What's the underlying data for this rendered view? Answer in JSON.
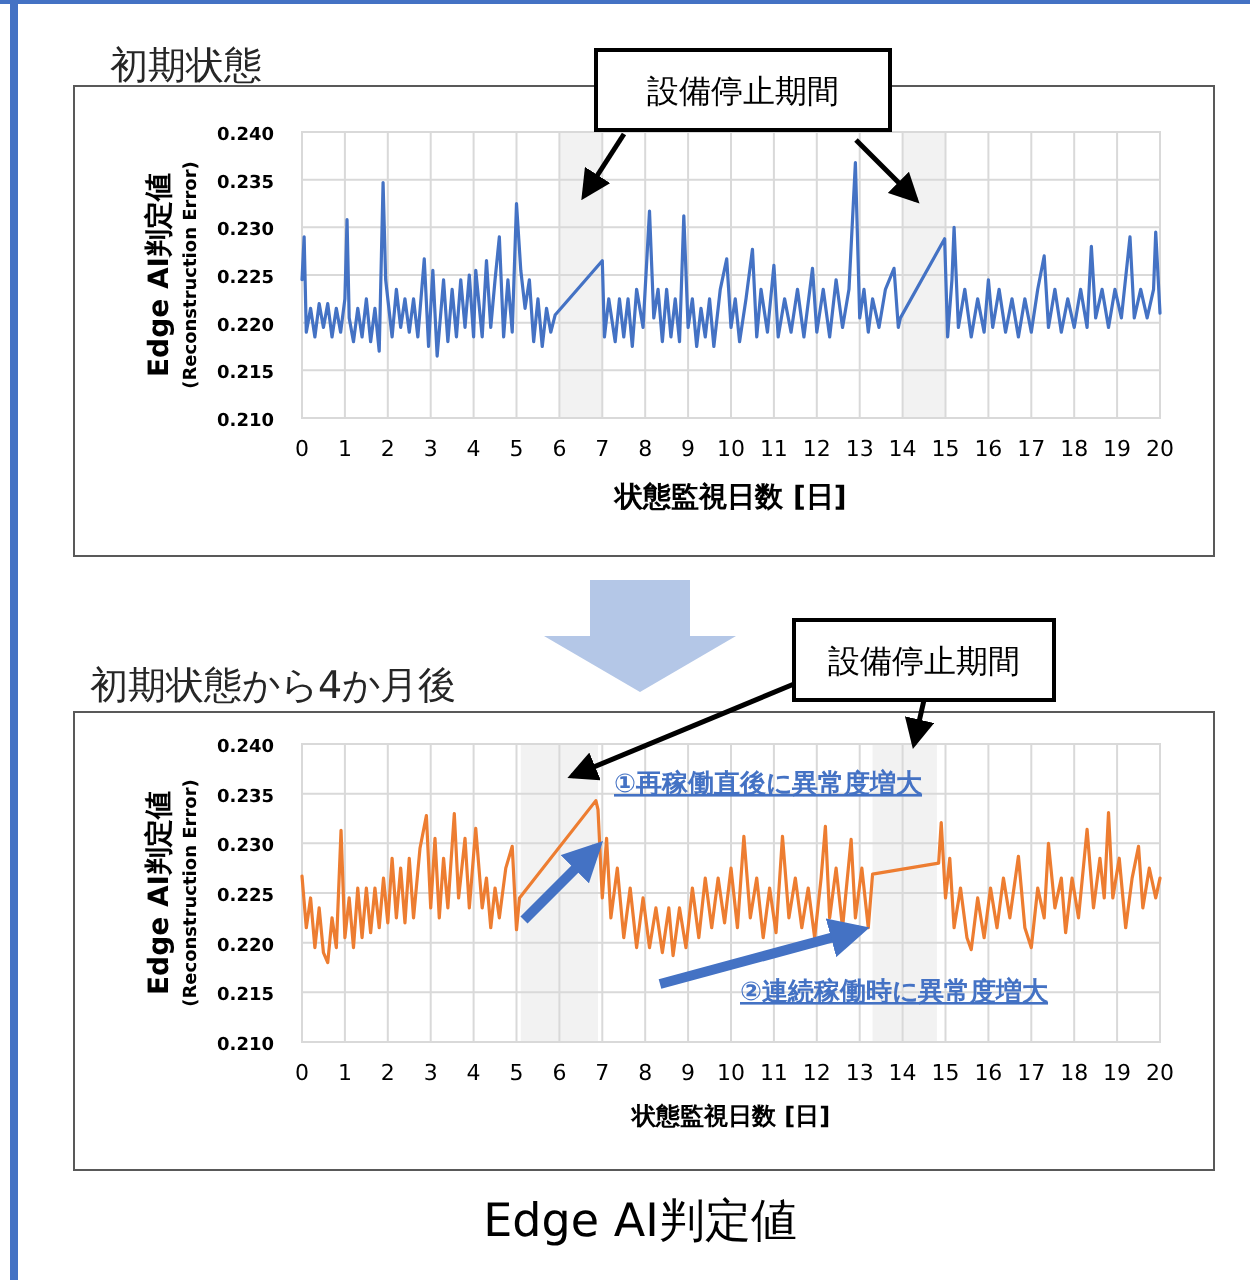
{
  "chart_data": [
    {
      "type": "line",
      "title": "初期状態",
      "xlabel": "状態監視日数 [日]",
      "ylabel": "Edge AI判定値\n(Reconstruction Error)",
      "xlim": [
        0,
        20
      ],
      "xticks": [
        0,
        1,
        2,
        3,
        4,
        5,
        6,
        7,
        8,
        9,
        10,
        11,
        12,
        13,
        14,
        15,
        16,
        17,
        18,
        19,
        20
      ],
      "ylim": [
        0.21,
        0.24
      ],
      "yticks": [
        {
          "value": 0.21,
          "label": "0.210"
        },
        {
          "value": 0.215,
          "label": "0.215"
        },
        {
          "value": 0.22,
          "label": "0.220"
        },
        {
          "value": 0.225,
          "label": "0.225"
        },
        {
          "value": 0.23,
          "label": "0.230"
        },
        {
          "value": 0.235,
          "label": "0.235"
        },
        {
          "value": 0.24,
          "label": "0.240"
        }
      ],
      "grid": true,
      "marker": "none",
      "line_style": "solid",
      "bands": [
        {
          "axis": "x",
          "from": 6,
          "to": 7,
          "color": "#f2f2f2"
        },
        {
          "axis": "x",
          "from": 14,
          "to": 15,
          "color": "#f2f2f2"
        }
      ],
      "annotations": [
        "設備停止期間"
      ],
      "series": [
        {
          "color": "#4472c4",
          "x": [
            0,
            0.05,
            0.1,
            0.2,
            0.3,
            0.4,
            0.5,
            0.6,
            0.7,
            0.8,
            0.9,
            1.0,
            1.05,
            1.1,
            1.2,
            1.3,
            1.4,
            1.5,
            1.6,
            1.7,
            1.8,
            1.89,
            1.95,
            2.1,
            2.2,
            2.3,
            2.4,
            2.5,
            2.6,
            2.7,
            2.85,
            2.95,
            3.05,
            3.15,
            3.3,
            3.4,
            3.5,
            3.6,
            3.7,
            3.8,
            3.9,
            4.0,
            4.05,
            4.2,
            4.3,
            4.4,
            4.5,
            4.6,
            4.7,
            4.8,
            4.9,
            5.0,
            5.1,
            5.2,
            5.3,
            5.4,
            5.5,
            5.6,
            5.7,
            5.8,
            5.9,
            7.0,
            7.05,
            7.15,
            7.3,
            7.4,
            7.5,
            7.6,
            7.7,
            7.8,
            7.95,
            8.1,
            8.2,
            8.3,
            8.4,
            8.5,
            8.6,
            8.7,
            8.8,
            8.9,
            9.0,
            9.1,
            9.2,
            9.3,
            9.4,
            9.5,
            9.6,
            9.75,
            9.9,
            10.0,
            10.1,
            10.2,
            10.35,
            10.5,
            10.6,
            10.7,
            10.85,
            11.0,
            11.1,
            11.25,
            11.4,
            11.55,
            11.7,
            11.9,
            12.0,
            12.15,
            12.3,
            12.45,
            12.6,
            12.75,
            12.9,
            13.0,
            13.1,
            13.2,
            13.3,
            13.45,
            13.6,
            13.8,
            13.9,
            13.95,
            14.98,
            15.05,
            15.15,
            15.2,
            15.3,
            15.45,
            15.6,
            15.75,
            15.9,
            16.0,
            16.1,
            16.25,
            16.4,
            16.55,
            16.7,
            16.85,
            17.0,
            17.15,
            17.3,
            17.4,
            17.55,
            17.7,
            17.85,
            18.0,
            18.15,
            18.3,
            18.4,
            18.5,
            18.65,
            18.8,
            18.95,
            19.1,
            19.3,
            19.4,
            19.55,
            19.7,
            19.85,
            19.9,
            20
          ],
          "values": [
            0.2245,
            0.229,
            0.219,
            0.2215,
            0.2185,
            0.222,
            0.2195,
            0.222,
            0.2185,
            0.2215,
            0.219,
            0.2225,
            0.2308,
            0.2205,
            0.218,
            0.2215,
            0.2185,
            0.2225,
            0.218,
            0.2215,
            0.217,
            0.2347,
            0.2245,
            0.2185,
            0.2235,
            0.2195,
            0.2225,
            0.219,
            0.2225,
            0.2185,
            0.2267,
            0.2175,
            0.2255,
            0.2165,
            0.2245,
            0.218,
            0.2235,
            0.2185,
            0.2245,
            0.2195,
            0.225,
            0.2185,
            0.2255,
            0.2185,
            0.2265,
            0.2195,
            0.2245,
            0.229,
            0.2185,
            0.2245,
            0.219,
            0.2325,
            0.2255,
            0.2215,
            0.2245,
            0.218,
            0.2225,
            0.2175,
            0.2215,
            0.219,
            0.2208,
            0.2265,
            0.2185,
            0.2225,
            0.218,
            0.2225,
            0.2185,
            0.2225,
            0.2175,
            0.2235,
            0.2195,
            0.2317,
            0.2205,
            0.2235,
            0.218,
            0.2235,
            0.2185,
            0.2225,
            0.218,
            0.2312,
            0.2195,
            0.2225,
            0.2175,
            0.2215,
            0.2185,
            0.2225,
            0.2175,
            0.2235,
            0.2267,
            0.2195,
            0.2225,
            0.218,
            0.2225,
            0.2277,
            0.2185,
            0.2235,
            0.219,
            0.226,
            0.2185,
            0.2225,
            0.219,
            0.2235,
            0.2185,
            0.2257,
            0.219,
            0.2235,
            0.2185,
            0.2245,
            0.2195,
            0.2235,
            0.2368,
            0.2205,
            0.2235,
            0.219,
            0.2225,
            0.2195,
            0.2235,
            0.2257,
            0.2195,
            0.2205,
            0.2288,
            0.2185,
            0.2245,
            0.23,
            0.2195,
            0.2235,
            0.2185,
            0.2225,
            0.219,
            0.2245,
            0.2195,
            0.2235,
            0.219,
            0.2225,
            0.2185,
            0.2225,
            0.219,
            0.2235,
            0.227,
            0.2195,
            0.2235,
            0.219,
            0.2225,
            0.2195,
            0.2235,
            0.2195,
            0.228,
            0.2205,
            0.2235,
            0.2195,
            0.2235,
            0.2205,
            0.229,
            0.2205,
            0.2235,
            0.2205,
            0.2235,
            0.2295,
            0.221
          ]
        }
      ]
    },
    {
      "type": "line",
      "title": "初期状態から4か月後",
      "xlabel": "状態監視日数 [日]",
      "ylabel": "Edge AI判定値\n(Reconstruction Error)",
      "xlim": [
        0,
        20
      ],
      "xticks": [
        0,
        1,
        2,
        3,
        4,
        5,
        6,
        7,
        8,
        9,
        10,
        11,
        12,
        13,
        14,
        15,
        16,
        17,
        18,
        19,
        20
      ],
      "ylim": [
        0.21,
        0.24
      ],
      "yticks": [
        {
          "value": 0.21,
          "label": "0.210"
        },
        {
          "value": 0.215,
          "label": "0.215"
        },
        {
          "value": 0.22,
          "label": "0.220"
        },
        {
          "value": 0.225,
          "label": "0.225"
        },
        {
          "value": 0.23,
          "label": "0.230"
        },
        {
          "value": 0.235,
          "label": "0.235"
        },
        {
          "value": 0.24,
          "label": "0.240"
        }
      ],
      "grid": true,
      "marker": "none",
      "line_style": "solid",
      "bands": [
        {
          "axis": "x",
          "from": 5.1,
          "to": 6.9,
          "color": "#f2f2f2"
        },
        {
          "axis": "x",
          "from": 13.3,
          "to": 14.8,
          "color": "#f2f2f2"
        }
      ],
      "annotations": [
        "設備停止期間",
        "①再稼働直後に異常度増大",
        "②連続稼働時に異常度増大",
        "Edge AI判定値"
      ],
      "series": [
        {
          "color": "#ed7d31",
          "x": [
            0,
            0.1,
            0.2,
            0.3,
            0.4,
            0.5,
            0.6,
            0.7,
            0.8,
            0.91,
            1.0,
            1.1,
            1.2,
            1.3,
            1.4,
            1.5,
            1.6,
            1.7,
            1.8,
            1.9,
            2.0,
            2.1,
            2.2,
            2.3,
            2.4,
            2.5,
            2.6,
            2.75,
            2.9,
            3.0,
            3.1,
            3.2,
            3.3,
            3.4,
            3.55,
            3.65,
            3.8,
            3.9,
            4.05,
            4.2,
            4.3,
            4.4,
            4.5,
            4.6,
            4.75,
            4.9,
            5.0,
            5.07,
            6.85,
            6.9,
            7.0,
            7.1,
            7.2,
            7.35,
            7.5,
            7.65,
            7.8,
            7.95,
            8.1,
            8.25,
            8.4,
            8.55,
            8.65,
            8.8,
            8.95,
            9.1,
            9.25,
            9.4,
            9.55,
            9.7,
            9.85,
            10.0,
            10.15,
            10.3,
            10.45,
            10.6,
            10.75,
            10.9,
            11.05,
            11.2,
            11.35,
            11.5,
            11.65,
            11.8,
            11.95,
            12.1,
            12.2,
            12.3,
            12.45,
            12.6,
            12.8,
            12.9,
            13.05,
            13.2,
            13.3,
            14.84,
            14.9,
            15.0,
            15.1,
            15.2,
            15.35,
            15.5,
            15.6,
            15.75,
            15.9,
            16.05,
            16.2,
            16.35,
            16.5,
            16.7,
            16.85,
            17.0,
            17.15,
            17.3,
            17.4,
            17.55,
            17.7,
            17.8,
            17.95,
            18.1,
            18.3,
            18.45,
            18.6,
            18.7,
            18.8,
            18.9,
            19.05,
            19.2,
            19.35,
            19.5,
            19.6,
            19.75,
            19.9,
            20
          ],
          "values": [
            0.2267,
            0.2215,
            0.2245,
            0.2195,
            0.2235,
            0.219,
            0.218,
            0.2225,
            0.2195,
            0.2313,
            0.2205,
            0.2245,
            0.2195,
            0.2255,
            0.2205,
            0.2255,
            0.221,
            0.2255,
            0.2215,
            0.2265,
            0.222,
            0.2285,
            0.2225,
            0.2275,
            0.222,
            0.2285,
            0.2225,
            0.2295,
            0.2328,
            0.2235,
            0.2305,
            0.2225,
            0.2285,
            0.2235,
            0.233,
            0.2245,
            0.2305,
            0.2235,
            0.2315,
            0.2235,
            0.2265,
            0.2215,
            0.2255,
            0.2225,
            0.2275,
            0.2297,
            0.2213,
            0.2245,
            0.2343,
            0.2334,
            0.2245,
            0.2305,
            0.2225,
            0.2275,
            0.2205,
            0.2255,
            0.2195,
            0.2245,
            0.2195,
            0.2235,
            0.219,
            0.2235,
            0.2187,
            0.2235,
            0.2195,
            0.2255,
            0.2205,
            0.2265,
            0.2215,
            0.2265,
            0.222,
            0.2275,
            0.2215,
            0.2307,
            0.2225,
            0.2265,
            0.2205,
            0.2255,
            0.221,
            0.2307,
            0.2225,
            0.2265,
            0.2215,
            0.2255,
            0.2205,
            0.2265,
            0.2317,
            0.2225,
            0.2275,
            0.2215,
            0.2304,
            0.2225,
            0.2275,
            0.2215,
            0.2269,
            0.228,
            0.2321,
            0.2245,
            0.2285,
            0.2215,
            0.2255,
            0.2205,
            0.2193,
            0.2245,
            0.2205,
            0.2255,
            0.2215,
            0.2265,
            0.2225,
            0.2287,
            0.2215,
            0.2195,
            0.2255,
            0.2225,
            0.23,
            0.2235,
            0.2265,
            0.221,
            0.2265,
            0.2225,
            0.2314,
            0.2235,
            0.2285,
            0.2245,
            0.2331,
            0.2245,
            0.2285,
            0.2215,
            0.2265,
            0.2297,
            0.2235,
            0.2275,
            0.2245,
            0.2265
          ]
        }
      ]
    }
  ]
}
